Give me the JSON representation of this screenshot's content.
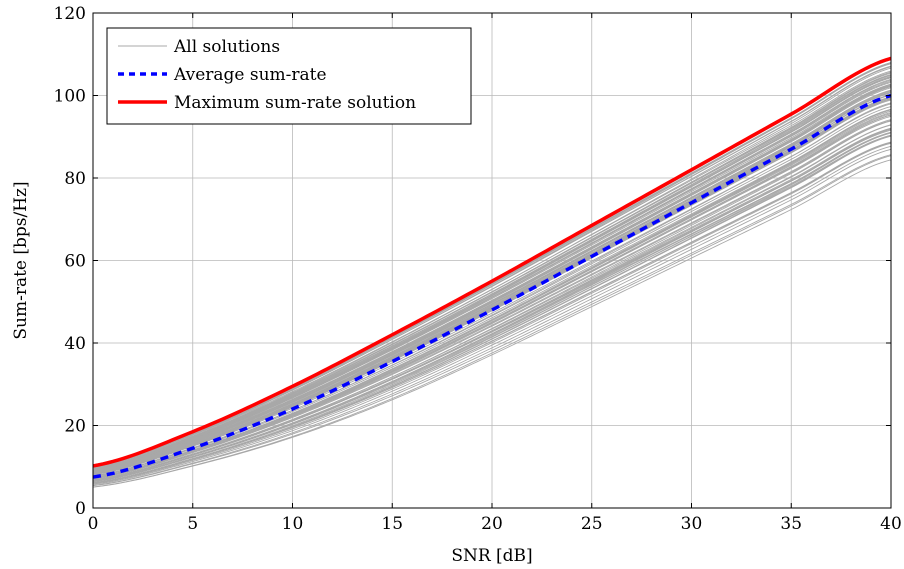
{
  "chart_data": {
    "type": "line",
    "title": "",
    "xlabel": "SNR [dB]",
    "ylabel": "Sum-rate [bps/Hz]",
    "xlim": [
      0,
      40
    ],
    "ylim": [
      0,
      120
    ],
    "xticks": [
      "0",
      "5",
      "10",
      "15",
      "20",
      "25",
      "30",
      "35",
      "40"
    ],
    "yticks": [
      "0",
      "20",
      "40",
      "60",
      "80",
      "100",
      "120"
    ],
    "grid": true,
    "legend_position": "top-left",
    "x": [
      0,
      5,
      10,
      15,
      20,
      25,
      30,
      35,
      40
    ],
    "envelope": {
      "upper": [
        10.2,
        18.5,
        29.5,
        42,
        55,
        68.5,
        82,
        95.5,
        109
      ],
      "lower": [
        4.7,
        9.6,
        16.3,
        25.2,
        36,
        47.6,
        59.3,
        71,
        83
      ]
    },
    "series": [
      {
        "name": "All solutions",
        "color": "#a8a8a8",
        "style": "solid"
      },
      {
        "name": "Average sum-rate",
        "color": "#0000ff",
        "style": "dashed",
        "values": [
          7.5,
          14.5,
          24,
          35.5,
          48,
          61,
          74,
          87,
          100
        ]
      },
      {
        "name": "Maximum sum-rate solution",
        "color": "#ff0000",
        "style": "solid",
        "values": [
          10.2,
          18.5,
          29.5,
          42,
          55,
          68.5,
          82,
          95.5,
          109
        ]
      }
    ]
  }
}
